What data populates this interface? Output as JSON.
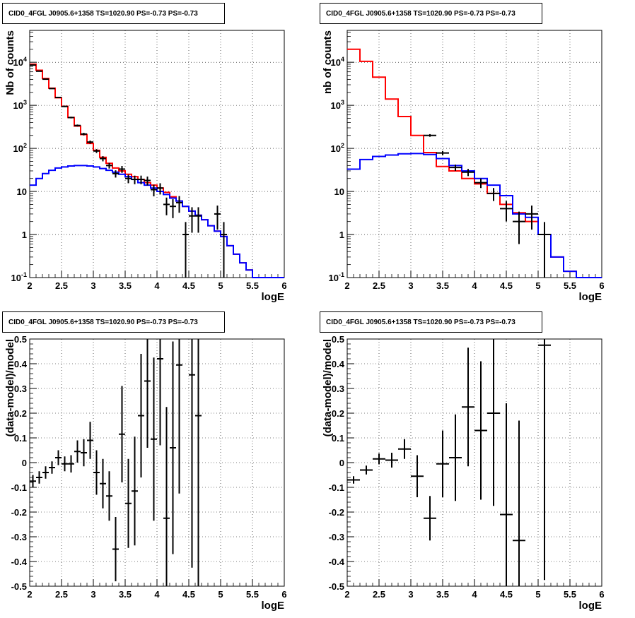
{
  "chart_data": [
    {
      "type": "line",
      "title": "CID0_4FGL J0905.6+1358 TS=1020.90 PS=-0.73 PS=-0.73",
      "xlabel": "logE",
      "ylabel": "Nb of counts",
      "xlim": [
        2,
        6
      ],
      "ylim": [
        0.1,
        55000
      ],
      "yscale": "log",
      "grid": true,
      "x_ticks": [
        "2",
        "2.5",
        "3",
        "3.5",
        "4",
        "4.5",
        "5",
        "5.5",
        "6"
      ],
      "y_ticks": [
        "10^-1",
        "1",
        "10",
        "10^2",
        "10^3",
        "10^4"
      ],
      "series": [
        {
          "color": "#ff0000",
          "type": "step",
          "bin_edges": [
            2.0,
            2.1,
            2.2,
            2.3,
            2.4,
            2.5,
            2.6,
            2.7,
            2.8,
            2.9,
            3.0,
            3.1,
            3.2,
            3.3,
            3.4,
            3.5,
            3.6,
            3.7,
            3.8,
            3.9,
            4.0,
            4.1,
            4.2,
            4.3,
            4.4,
            4.5,
            4.6,
            4.7,
            4.8,
            4.9,
            5.0,
            5.1,
            5.2,
            5.3,
            5.4,
            5.5,
            5.6,
            5.7,
            5.8,
            5.9,
            6.0
          ],
          "values": [
            9000,
            6500,
            4200,
            2500,
            1500,
            950,
            520,
            330,
            210,
            130,
            90,
            62,
            45,
            35,
            30,
            25,
            22,
            19,
            16,
            14,
            12,
            9.5,
            7.5,
            6,
            4.5,
            3.5,
            2.8,
            2.2,
            1.6,
            1.2,
            0.9,
            0.55,
            0.35,
            0.22,
            0.15,
            0.1,
            0.1,
            0.1,
            0.1,
            0.1
          ]
        },
        {
          "color": "#0000ff",
          "type": "step",
          "bin_edges": [
            2.0,
            2.1,
            2.2,
            2.3,
            2.4,
            2.5,
            2.6,
            2.7,
            2.8,
            2.9,
            3.0,
            3.1,
            3.2,
            3.3,
            3.4,
            3.5,
            3.6,
            3.7,
            3.8,
            3.9,
            4.0,
            4.1,
            4.2,
            4.3,
            4.4,
            4.5,
            4.6,
            4.7,
            4.8,
            4.9,
            5.0,
            5.1,
            5.2,
            5.3,
            5.4,
            5.5,
            5.6,
            5.7,
            5.8,
            5.9,
            6.0
          ],
          "values": [
            14,
            20,
            26,
            31,
            35,
            37,
            39,
            40,
            40,
            39,
            37,
            34,
            31,
            28,
            25,
            22,
            19,
            16,
            14,
            12,
            10,
            8.5,
            7,
            6,
            4.5,
            3.5,
            2.8,
            2.2,
            1.6,
            1.2,
            0.9,
            0.55,
            0.35,
            0.22,
            0.15,
            0.1,
            0.1,
            0.1,
            0.1,
            0.1
          ]
        },
        {
          "color": "#000000",
          "type": "errorbar",
          "points": [
            {
              "x": 2.05,
              "y": 8600,
              "yerr": 95
            },
            {
              "x": 2.15,
              "y": 6200,
              "yerr": 80
            },
            {
              "x": 2.25,
              "y": 4050,
              "yerr": 65
            },
            {
              "x": 2.35,
              "y": 2450,
              "yerr": 50
            },
            {
              "x": 2.45,
              "y": 1520,
              "yerr": 40
            },
            {
              "x": 2.55,
              "y": 940,
              "yerr": 31
            },
            {
              "x": 2.65,
              "y": 520,
              "yerr": 23
            },
            {
              "x": 2.75,
              "y": 340,
              "yerr": 18
            },
            {
              "x": 2.85,
              "y": 215,
              "yerr": 15
            },
            {
              "x": 2.95,
              "y": 140,
              "yerr": 12
            },
            {
              "x": 3.05,
              "y": 87,
              "yerr": 9
            },
            {
              "x": 3.15,
              "y": 58,
              "yerr": 8
            },
            {
              "x": 3.25,
              "y": 40,
              "yerr": 6
            },
            {
              "x": 3.35,
              "y": 26,
              "yerr": 5
            },
            {
              "x": 3.45,
              "y": 33,
              "yerr": 6
            },
            {
              "x": 3.55,
              "y": 20,
              "yerr": 4.5
            },
            {
              "x": 3.65,
              "y": 19,
              "yerr": 4.3
            },
            {
              "x": 3.75,
              "y": 19,
              "yerr": 4.3
            },
            {
              "x": 3.85,
              "y": 18,
              "yerr": 4.2
            },
            {
              "x": 3.95,
              "y": 11,
              "yerr": 3.3
            },
            {
              "x": 4.05,
              "y": 12,
              "yerr": 3.5
            },
            {
              "x": 4.15,
              "y": 5,
              "yerr": 2.2
            },
            {
              "x": 4.25,
              "y": 4.5,
              "yerr": 2.1
            },
            {
              "x": 4.35,
              "y": 5.5,
              "yerr": 2.3
            },
            {
              "x": 4.45,
              "y": 1,
              "yerr": 0.95
            },
            {
              "x": 4.55,
              "y": 2.7,
              "yerr": 1.6
            },
            {
              "x": 4.65,
              "y": 2.7,
              "yerr": 1.6
            },
            {
              "x": 4.95,
              "y": 3,
              "yerr": 1.7
            },
            {
              "x": 5.05,
              "y": 1,
              "yerr": 0.95
            }
          ]
        }
      ]
    },
    {
      "type": "line",
      "title": "CID0_4FGL J0905.6+1358 TS=1020.90 PS=-0.73 PS=-0.73",
      "xlabel": "logE",
      "ylabel": "nb of counts",
      "xlim": [
        2,
        6
      ],
      "ylim": [
        0.1,
        55000
      ],
      "yscale": "log",
      "grid": true,
      "x_ticks": [
        "2",
        "2.5",
        "3",
        "3.5",
        "4",
        "4.5",
        "5",
        "5.5",
        "6"
      ],
      "y_ticks": [
        "10^-1",
        "1",
        "10",
        "10^2",
        "10^3",
        "10^4"
      ],
      "series": [
        {
          "color": "#ff0000",
          "type": "step",
          "bin_edges": [
            2.0,
            2.2,
            2.4,
            2.6,
            2.8,
            3.0,
            3.2,
            3.4,
            3.6,
            3.8,
            4.0,
            4.2,
            4.4,
            4.6,
            4.8,
            5.0,
            5.2,
            5.4,
            5.6,
            5.8,
            6.0
          ],
          "values": [
            20000,
            10500,
            4500,
            1400,
            550,
            200,
            80,
            38,
            30,
            20,
            15,
            9,
            5,
            3.2,
            2,
            1,
            0.3,
            0.14,
            0.1,
            0.1
          ]
        },
        {
          "color": "#0000ff",
          "type": "step",
          "bin_edges": [
            2.0,
            2.2,
            2.4,
            2.6,
            2.8,
            3.0,
            3.2,
            3.4,
            3.6,
            3.8,
            4.0,
            4.2,
            4.4,
            4.6,
            4.8,
            5.0,
            5.2,
            5.4,
            5.6,
            5.8,
            6.0
          ],
          "values": [
            33,
            55,
            65,
            70,
            75,
            76,
            72,
            58,
            40,
            30,
            20,
            14,
            8,
            3,
            2.5,
            1,
            0.3,
            0.14,
            0.1,
            0.1
          ]
        },
        {
          "color": "#000000",
          "type": "errorbar",
          "points": [
            {
              "x": 3.3,
              "y": 200,
              "yerr": 14
            },
            {
              "x": 3.5,
              "y": 78,
              "yerr": 9
            },
            {
              "x": 3.7,
              "y": 36,
              "yerr": 6
            },
            {
              "x": 3.9,
              "y": 28,
              "yerr": 5.3
            },
            {
              "x": 4.1,
              "y": 16,
              "yerr": 4
            },
            {
              "x": 4.3,
              "y": 9,
              "yerr": 3
            },
            {
              "x": 4.5,
              "y": 4,
              "yerr": 2
            },
            {
              "x": 4.7,
              "y": 2,
              "yerr": 1.4
            },
            {
              "x": 4.9,
              "y": 3,
              "yerr": 1.7
            },
            {
              "x": 5.1,
              "y": 1,
              "yerr": 0.95
            }
          ]
        }
      ]
    },
    {
      "type": "scatter",
      "title": "CID0_4FGL J0905.6+1358 TS=1020.90 PS=-0.73 PS=-0.73",
      "xlabel": "logE",
      "ylabel": "(data-model)/model",
      "xlim": [
        2,
        6
      ],
      "ylim": [
        -0.5,
        0.5
      ],
      "grid": true,
      "x_ticks": [
        "2",
        "2.5",
        "3",
        "3.5",
        "4",
        "4.5",
        "5",
        "5.5",
        "6"
      ],
      "y_ticks": [
        "-0.5",
        "-0.4",
        "-0.3",
        "-0.2",
        "-0.1",
        "0",
        "0.1",
        "0.2",
        "0.3",
        "0.4",
        "0.5"
      ],
      "series": [
        {
          "color": "#000000",
          "type": "errorbar",
          "points": [
            {
              "x": 2.05,
              "y": -0.075,
              "yerr": 0.025
            },
            {
              "x": 2.15,
              "y": -0.06,
              "yerr": 0.025
            },
            {
              "x": 2.25,
              "y": -0.04,
              "yerr": 0.025
            },
            {
              "x": 2.35,
              "y": -0.02,
              "yerr": 0.025
            },
            {
              "x": 2.45,
              "y": 0.02,
              "yerr": 0.03
            },
            {
              "x": 2.55,
              "y": -0.005,
              "yerr": 0.03
            },
            {
              "x": 2.65,
              "y": -0.005,
              "yerr": 0.035
            },
            {
              "x": 2.75,
              "y": 0.045,
              "yerr": 0.045
            },
            {
              "x": 2.85,
              "y": 0.04,
              "yerr": 0.055
            },
            {
              "x": 2.95,
              "y": 0.09,
              "yerr": 0.075
            },
            {
              "x": 3.05,
              "y": -0.04,
              "yerr": 0.09
            },
            {
              "x": 3.15,
              "y": -0.085,
              "yerr": 0.1
            },
            {
              "x": 3.25,
              "y": -0.135,
              "yerr": 0.1
            },
            {
              "x": 3.35,
              "y": -0.35,
              "yerr": 0.13
            },
            {
              "x": 3.45,
              "y": 0.115,
              "yerr": 0.195
            },
            {
              "x": 3.55,
              "y": -0.165,
              "yerr": 0.18
            },
            {
              "x": 3.65,
              "y": -0.115,
              "yerr": 0.22
            },
            {
              "x": 3.75,
              "y": 0.19,
              "yerr": 0.25
            },
            {
              "x": 3.85,
              "y": 0.33,
              "yerr": 0.27
            },
            {
              "x": 3.95,
              "y": 0.095,
              "yerr": 0.33
            },
            {
              "x": 4.05,
              "y": 0.42,
              "yerr": 0.35
            },
            {
              "x": 4.15,
              "y": -0.225,
              "yerr": 0.45
            },
            {
              "x": 4.25,
              "y": 0.06,
              "yerr": 0.43
            },
            {
              "x": 4.35,
              "y": 0.395,
              "yerr": 0.52
            },
            {
              "x": 4.55,
              "y": 0.355,
              "yerr": 0.78
            },
            {
              "x": 4.65,
              "y": 0.19,
              "yerr": 0.75
            }
          ]
        }
      ]
    },
    {
      "type": "scatter",
      "title": "CID0_4FGL J0905.6+1358 TS=1020.90 PS=-0.73 PS=-0.73",
      "xlabel": "logE",
      "ylabel": "(data-model)/model",
      "xlim": [
        2,
        6
      ],
      "ylim": [
        -0.5,
        0.5
      ],
      "grid": true,
      "x_ticks": [
        "2",
        "2.5",
        "3",
        "3.5",
        "4",
        "4.5",
        "5",
        "5.5",
        "6"
      ],
      "y_ticks": [
        "-0.5",
        "-0.4",
        "-0.3",
        "-0.2",
        "-0.1",
        "0",
        "0.1",
        "0.2",
        "0.3",
        "0.4",
        "0.5"
      ],
      "series": [
        {
          "color": "#000000",
          "type": "errorbar",
          "points": [
            {
              "x": 2.1,
              "y": -0.07,
              "yerr": 0.015
            },
            {
              "x": 2.3,
              "y": -0.03,
              "yerr": 0.018
            },
            {
              "x": 2.5,
              "y": 0.015,
              "yerr": 0.022
            },
            {
              "x": 2.7,
              "y": 0.01,
              "yerr": 0.03
            },
            {
              "x": 2.9,
              "y": 0.055,
              "yerr": 0.04
            },
            {
              "x": 3.1,
              "y": -0.055,
              "yerr": 0.085
            },
            {
              "x": 3.3,
              "y": -0.225,
              "yerr": 0.09
            },
            {
              "x": 3.5,
              "y": -0.005,
              "yerr": 0.135
            },
            {
              "x": 3.7,
              "y": 0.02,
              "yerr": 0.175
            },
            {
              "x": 3.9,
              "y": 0.225,
              "yerr": 0.24
            },
            {
              "x": 4.1,
              "y": 0.13,
              "yerr": 0.28
            },
            {
              "x": 4.3,
              "y": 0.2,
              "yerr": 0.375
            },
            {
              "x": 4.5,
              "y": -0.21,
              "yerr": 0.45
            },
            {
              "x": 4.7,
              "y": -0.315,
              "yerr": 0.485
            },
            {
              "x": 5.1,
              "y": 0.475,
              "yerr": 0.95
            }
          ]
        }
      ]
    }
  ]
}
